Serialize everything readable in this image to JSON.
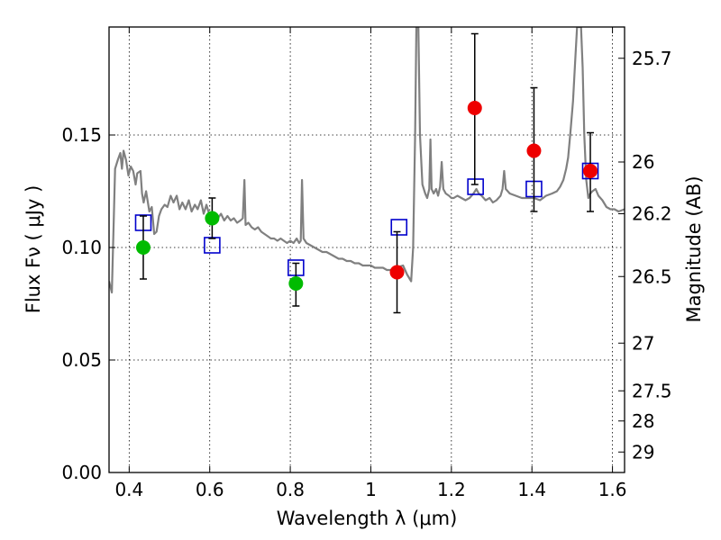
{
  "chart_data": {
    "type": "scatter",
    "xlabel": "Wavelength  λ (μm)",
    "ylabel": "Flux  Fν  ( μJy )",
    "ylabel_right": "Magnitude (AB)",
    "xlim": [
      0.35,
      1.63
    ],
    "ylim": [
      0.0,
      0.198
    ],
    "grid": true,
    "x_ticks": [
      {
        "value": 0.4,
        "label": "0.4"
      },
      {
        "value": 0.6,
        "label": "0.6"
      },
      {
        "value": 0.8,
        "label": "0.8"
      },
      {
        "value": 1.0,
        "label": "1"
      },
      {
        "value": 1.2,
        "label": "1.2"
      },
      {
        "value": 1.4,
        "label": "1.4"
      },
      {
        "value": 1.6,
        "label": "1.6"
      }
    ],
    "y_ticks": [
      {
        "value": 0.0,
        "label": "0.00"
      },
      {
        "value": 0.05,
        "label": "0.05"
      },
      {
        "value": 0.1,
        "label": "0.10"
      },
      {
        "value": 0.15,
        "label": "0.15"
      }
    ],
    "right_ticks": [
      {
        "flux": 0.1841,
        "label": "25.7"
      },
      {
        "flux": 0.138,
        "label": "26"
      },
      {
        "flux": 0.115,
        "label": "26.2"
      },
      {
        "flux": 0.0871,
        "label": "26.5"
      },
      {
        "flux": 0.0575,
        "label": "27"
      },
      {
        "flux": 0.0363,
        "label": "27.5"
      },
      {
        "flux": 0.0229,
        "label": "28"
      },
      {
        "flux": 0.0091,
        "label": "29"
      }
    ],
    "series": [
      {
        "marker": "square-open",
        "color": "#0000cc",
        "points": [
          {
            "x": 0.435,
            "y": 0.111
          },
          {
            "x": 0.606,
            "y": 0.101
          },
          {
            "x": 0.814,
            "y": 0.091
          },
          {
            "x": 1.07,
            "y": 0.109
          },
          {
            "x": 1.26,
            "y": 0.127
          },
          {
            "x": 1.405,
            "y": 0.126
          },
          {
            "x": 1.545,
            "y": 0.134
          }
        ]
      },
      {
        "marker": "circle",
        "color": "#00bb00",
        "points": [
          {
            "x": 0.435,
            "y": 0.1,
            "yerr": [
              0.086,
              0.114
            ]
          },
          {
            "x": 0.606,
            "y": 0.113,
            "yerr": [
              0.104,
              0.122
            ]
          },
          {
            "x": 0.814,
            "y": 0.084,
            "yerr": [
              0.074,
              0.093
            ]
          }
        ]
      },
      {
        "marker": "circle",
        "color": "#ee0000",
        "points": [
          {
            "x": 1.065,
            "y": 0.089,
            "yerr": [
              0.071,
              0.107
            ]
          },
          {
            "x": 1.258,
            "y": 0.162,
            "yerr": [
              0.128,
              0.195
            ]
          },
          {
            "x": 1.405,
            "y": 0.143,
            "yerr": [
              0.116,
              0.171
            ]
          },
          {
            "x": 1.545,
            "y": 0.134,
            "yerr": [
              0.116,
              0.151
            ]
          }
        ]
      }
    ],
    "model_sed": {
      "color": "#808080",
      "points": [
        [
          0.35,
          0.085
        ],
        [
          0.357,
          0.08
        ],
        [
          0.362,
          0.115
        ],
        [
          0.365,
          0.135
        ],
        [
          0.372,
          0.139
        ],
        [
          0.378,
          0.142
        ],
        [
          0.382,
          0.135
        ],
        [
          0.386,
          0.143
        ],
        [
          0.392,
          0.139
        ],
        [
          0.398,
          0.132
        ],
        [
          0.404,
          0.136
        ],
        [
          0.41,
          0.134
        ],
        [
          0.416,
          0.128
        ],
        [
          0.42,
          0.133
        ],
        [
          0.428,
          0.134
        ],
        [
          0.432,
          0.124
        ],
        [
          0.436,
          0.12
        ],
        [
          0.442,
          0.125
        ],
        [
          0.45,
          0.116
        ],
        [
          0.456,
          0.118
        ],
        [
          0.462,
          0.106
        ],
        [
          0.468,
          0.107
        ],
        [
          0.474,
          0.114
        ],
        [
          0.48,
          0.117
        ],
        [
          0.488,
          0.119
        ],
        [
          0.495,
          0.118
        ],
        [
          0.503,
          0.123
        ],
        [
          0.51,
          0.12
        ],
        [
          0.518,
          0.123
        ],
        [
          0.525,
          0.117
        ],
        [
          0.532,
          0.12
        ],
        [
          0.54,
          0.117
        ],
        [
          0.548,
          0.121
        ],
        [
          0.555,
          0.116
        ],
        [
          0.563,
          0.119
        ],
        [
          0.57,
          0.117
        ],
        [
          0.578,
          0.121
        ],
        [
          0.585,
          0.115
        ],
        [
          0.592,
          0.119
        ],
        [
          0.6,
          0.114
        ],
        [
          0.606,
          0.113
        ],
        [
          0.612,
          0.115
        ],
        [
          0.62,
          0.113
        ],
        [
          0.628,
          0.115
        ],
        [
          0.636,
          0.112
        ],
        [
          0.644,
          0.114
        ],
        [
          0.652,
          0.112
        ],
        [
          0.66,
          0.113
        ],
        [
          0.668,
          0.111
        ],
        [
          0.676,
          0.112
        ],
        [
          0.682,
          0.113
        ],
        [
          0.686,
          0.13
        ],
        [
          0.689,
          0.11
        ],
        [
          0.696,
          0.111
        ],
        [
          0.704,
          0.109
        ],
        [
          0.712,
          0.108
        ],
        [
          0.72,
          0.109
        ],
        [
          0.728,
          0.107
        ],
        [
          0.736,
          0.106
        ],
        [
          0.744,
          0.105
        ],
        [
          0.752,
          0.104
        ],
        [
          0.76,
          0.104
        ],
        [
          0.768,
          0.103
        ],
        [
          0.776,
          0.104
        ],
        [
          0.784,
          0.103
        ],
        [
          0.792,
          0.102
        ],
        [
          0.8,
          0.103
        ],
        [
          0.808,
          0.102
        ],
        [
          0.816,
          0.104
        ],
        [
          0.822,
          0.102
        ],
        [
          0.826,
          0.103
        ],
        [
          0.829,
          0.13
        ],
        [
          0.833,
          0.104
        ],
        [
          0.84,
          0.102
        ],
        [
          0.85,
          0.101
        ],
        [
          0.86,
          0.1
        ],
        [
          0.87,
          0.099
        ],
        [
          0.88,
          0.098
        ],
        [
          0.89,
          0.098
        ],
        [
          0.9,
          0.097
        ],
        [
          0.91,
          0.096
        ],
        [
          0.92,
          0.095
        ],
        [
          0.93,
          0.095
        ],
        [
          0.94,
          0.094
        ],
        [
          0.95,
          0.094
        ],
        [
          0.96,
          0.093
        ],
        [
          0.97,
          0.093
        ],
        [
          0.98,
          0.092
        ],
        [
          0.99,
          0.092
        ],
        [
          1.0,
          0.092
        ],
        [
          1.01,
          0.091
        ],
        [
          1.02,
          0.091
        ],
        [
          1.03,
          0.091
        ],
        [
          1.04,
          0.09
        ],
        [
          1.05,
          0.09
        ],
        [
          1.06,
          0.091
        ],
        [
          1.08,
          0.092
        ],
        [
          1.09,
          0.088
        ],
        [
          1.1,
          0.085
        ],
        [
          1.105,
          0.1
        ],
        [
          1.11,
          0.15
        ],
        [
          1.113,
          0.198
        ],
        [
          1.118,
          0.198
        ],
        [
          1.122,
          0.15
        ],
        [
          1.128,
          0.128
        ],
        [
          1.135,
          0.124
        ],
        [
          1.14,
          0.122
        ],
        [
          1.145,
          0.126
        ],
        [
          1.148,
          0.148
        ],
        [
          1.151,
          0.126
        ],
        [
          1.156,
          0.124
        ],
        [
          1.162,
          0.126
        ],
        [
          1.167,
          0.123
        ],
        [
          1.172,
          0.127
        ],
        [
          1.176,
          0.138
        ],
        [
          1.18,
          0.126
        ],
        [
          1.186,
          0.124
        ],
        [
          1.194,
          0.123
        ],
        [
          1.2,
          0.122
        ],
        [
          1.206,
          0.122
        ],
        [
          1.215,
          0.123
        ],
        [
          1.225,
          0.122
        ],
        [
          1.235,
          0.121
        ],
        [
          1.245,
          0.122
        ],
        [
          1.255,
          0.124
        ],
        [
          1.262,
          0.126
        ],
        [
          1.268,
          0.124
        ],
        [
          1.275,
          0.123
        ],
        [
          1.285,
          0.121
        ],
        [
          1.295,
          0.122
        ],
        [
          1.303,
          0.12
        ],
        [
          1.312,
          0.121
        ],
        [
          1.322,
          0.123
        ],
        [
          1.327,
          0.126
        ],
        [
          1.331,
          0.134
        ],
        [
          1.335,
          0.126
        ],
        [
          1.345,
          0.124
        ],
        [
          1.36,
          0.123
        ],
        [
          1.375,
          0.122
        ],
        [
          1.39,
          0.122
        ],
        [
          1.405,
          0.122
        ],
        [
          1.42,
          0.121
        ],
        [
          1.435,
          0.123
        ],
        [
          1.45,
          0.124
        ],
        [
          1.462,
          0.125
        ],
        [
          1.47,
          0.127
        ],
        [
          1.478,
          0.13
        ],
        [
          1.485,
          0.135
        ],
        [
          1.49,
          0.14
        ],
        [
          1.496,
          0.152
        ],
        [
          1.502,
          0.165
        ],
        [
          1.508,
          0.185
        ],
        [
          1.512,
          0.198
        ],
        [
          1.522,
          0.198
        ],
        [
          1.526,
          0.18
        ],
        [
          1.53,
          0.15
        ],
        [
          1.535,
          0.13
        ],
        [
          1.54,
          0.122
        ],
        [
          1.545,
          0.124
        ],
        [
          1.55,
          0.125
        ],
        [
          1.558,
          0.126
        ],
        [
          1.565,
          0.123
        ],
        [
          1.575,
          0.121
        ],
        [
          1.585,
          0.118
        ],
        [
          1.595,
          0.117
        ],
        [
          1.605,
          0.117
        ],
        [
          1.615,
          0.116
        ],
        [
          1.63,
          0.117
        ]
      ]
    }
  }
}
